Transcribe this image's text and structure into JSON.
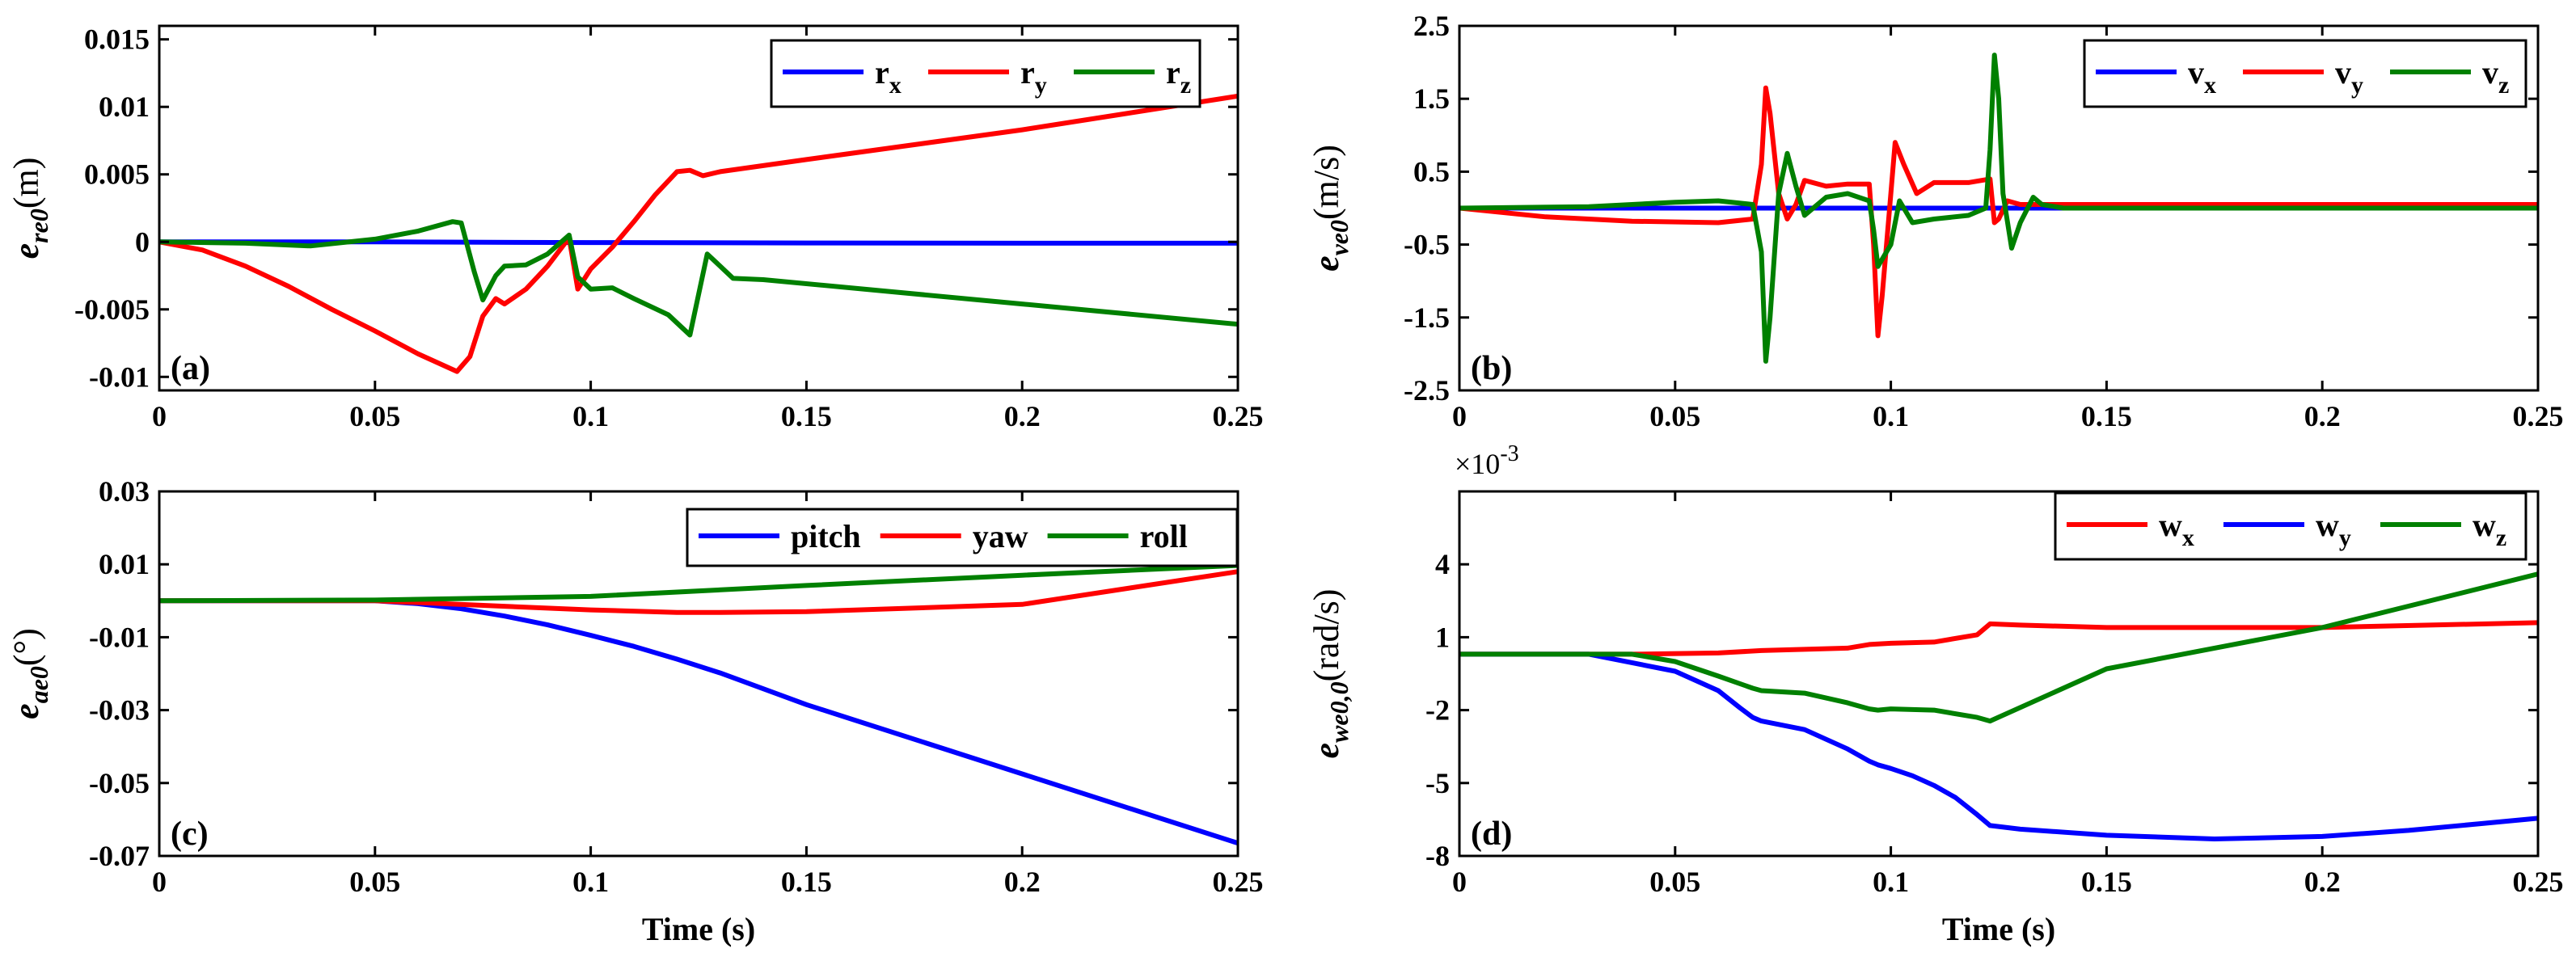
{
  "chart_data": [
    {
      "id": "a",
      "type": "line",
      "panel_label": "(a)",
      "ylabel": {
        "base": "e",
        "sub": "re0",
        "unit": "(m)"
      },
      "xlabel": "",
      "xlim": [
        0,
        0.25
      ],
      "ylim": [
        -0.011,
        0.016
      ],
      "xticks": [
        0,
        0.05,
        0.1,
        0.15,
        0.2,
        0.25
      ],
      "xtick_labels": [
        "0",
        "0.05",
        "0.1",
        "0.15",
        "0.2",
        "0.25"
      ],
      "yticks": [
        -0.01,
        -0.005,
        0,
        0.005,
        0.01,
        0.015
      ],
      "ytick_labels": [
        "-0.01",
        "-0.005",
        "0",
        "0.005",
        "0.01",
        "0.015"
      ],
      "legend": {
        "placement": "top-right"
      },
      "series": [
        {
          "name": "r",
          "sub": "x",
          "color": "#0000ff",
          "x": [
            0,
            0.05,
            0.1,
            0.15,
            0.2,
            0.25
          ],
          "y": [
            0,
            0,
            -5e-05,
            -8e-05,
            -0.0001,
            -0.0001
          ]
        },
        {
          "name": "r",
          "sub": "y",
          "color": "#ff0000",
          "x": [
            0,
            0.01,
            0.02,
            0.03,
            0.04,
            0.05,
            0.06,
            0.069,
            0.072,
            0.075,
            0.078,
            0.08,
            0.085,
            0.09,
            0.095,
            0.097,
            0.1,
            0.105,
            0.11,
            0.115,
            0.12,
            0.123,
            0.126,
            0.13,
            0.15,
            0.2,
            0.25
          ],
          "y": [
            0,
            -0.0006,
            -0.0018,
            -0.0033,
            -0.005,
            -0.0066,
            -0.0083,
            -0.0096,
            -0.0085,
            -0.0055,
            -0.0042,
            -0.0046,
            -0.0035,
            -0.0018,
            0.0003,
            -0.0035,
            -0.002,
            -0.0004,
            0.0015,
            0.0035,
            0.0052,
            0.0053,
            0.0049,
            0.0052,
            0.0061,
            0.0083,
            0.0108
          ]
        },
        {
          "name": "r",
          "sub": "z",
          "color": "#008000",
          "x": [
            0,
            0.02,
            0.035,
            0.05,
            0.06,
            0.068,
            0.07,
            0.073,
            0.075,
            0.078,
            0.08,
            0.085,
            0.09,
            0.095,
            0.097,
            0.1,
            0.105,
            0.11,
            0.118,
            0.123,
            0.127,
            0.13,
            0.133,
            0.14,
            0.2,
            0.25
          ],
          "y": [
            0,
            -0.0001,
            -0.0003,
            0.0002,
            0.0008,
            0.0015,
            0.0014,
            -0.0022,
            -0.0043,
            -0.0025,
            -0.0018,
            -0.0017,
            -0.0009,
            0.0005,
            -0.0026,
            -0.0035,
            -0.0034,
            -0.0042,
            -0.0054,
            -0.0069,
            -0.0009,
            -0.0018,
            -0.0027,
            -0.0028,
            -0.0046,
            -0.0061
          ]
        }
      ]
    },
    {
      "id": "b",
      "type": "line",
      "panel_label": "(b)",
      "ylabel": {
        "base": "e",
        "sub": "ve0",
        "unit": "(m/s)"
      },
      "xlabel": "",
      "xlim": [
        0,
        0.25
      ],
      "ylim": [
        -2.5,
        2.5
      ],
      "xticks": [
        0,
        0.05,
        0.1,
        0.15,
        0.2,
        0.25
      ],
      "xtick_labels": [
        "0",
        "0.05",
        "0.1",
        "0.15",
        "0.2",
        "0.25"
      ],
      "yticks": [
        -2.5,
        -1.5,
        -0.5,
        0.5,
        1.5,
        2.5
      ],
      "ytick_labels": [
        "-2.5",
        "-1.5",
        "-0.5",
        "0.5",
        "1.5",
        "2.5"
      ],
      "legend": {
        "placement": "top-right"
      },
      "series": [
        {
          "name": "v",
          "sub": "x",
          "color": "#0000ff",
          "x": [
            0,
            0.05,
            0.1,
            0.15,
            0.2,
            0.25
          ],
          "y": [
            0,
            0,
            0,
            0,
            0,
            0
          ]
        },
        {
          "name": "v",
          "sub": "y",
          "color": "#ff0000",
          "x": [
            0,
            0.02,
            0.04,
            0.06,
            0.068,
            0.07,
            0.071,
            0.072,
            0.074,
            0.076,
            0.078,
            0.08,
            0.085,
            0.09,
            0.095,
            0.096,
            0.097,
            0.098,
            0.1,
            0.101,
            0.103,
            0.106,
            0.11,
            0.118,
            0.123,
            0.124,
            0.125,
            0.127,
            0.13,
            0.14,
            0.2,
            0.25
          ],
          "y": [
            0,
            -0.12,
            -0.18,
            -0.2,
            -0.15,
            0.6,
            1.65,
            1.3,
            0.2,
            -0.15,
            0.05,
            0.38,
            0.3,
            0.33,
            0.33,
            -0.5,
            -1.75,
            -1.2,
            0.2,
            0.9,
            0.6,
            0.2,
            0.35,
            0.35,
            0.4,
            -0.2,
            -0.15,
            0.1,
            0.05,
            0.05,
            0.05,
            0.05
          ]
        },
        {
          "name": "v",
          "sub": "z",
          "color": "#008000",
          "x": [
            0,
            0.03,
            0.05,
            0.06,
            0.068,
            0.07,
            0.071,
            0.072,
            0.074,
            0.076,
            0.078,
            0.08,
            0.085,
            0.09,
            0.095,
            0.096,
            0.097,
            0.098,
            0.1,
            0.102,
            0.105,
            0.11,
            0.118,
            0.122,
            0.123,
            0.124,
            0.125,
            0.126,
            0.128,
            0.13,
            0.133,
            0.135,
            0.14,
            0.2,
            0.25
          ],
          "y": [
            0,
            0.02,
            0.08,
            0.1,
            0.05,
            -0.6,
            -2.1,
            -1.5,
            0.2,
            0.75,
            0.3,
            -0.1,
            0.15,
            0.2,
            0.1,
            -0.3,
            -0.8,
            -0.7,
            -0.5,
            0.1,
            -0.2,
            -0.15,
            -0.1,
            0.0,
            0.8,
            2.1,
            1.5,
            0.2,
            -0.55,
            -0.2,
            0.15,
            0.05,
            0.0,
            0.0,
            0.0
          ]
        }
      ]
    },
    {
      "id": "c",
      "type": "line",
      "panel_label": "(c)",
      "ylabel": {
        "base": "e",
        "sub": "ae0",
        "unit": "(°)"
      },
      "xlabel": "Time (s)",
      "xlim": [
        0,
        0.25
      ],
      "ylim": [
        -0.07,
        0.03
      ],
      "xticks": [
        0,
        0.05,
        0.1,
        0.15,
        0.2,
        0.25
      ],
      "xtick_labels": [
        "0",
        "0.05",
        "0.1",
        "0.15",
        "0.2",
        "0.25"
      ],
      "yticks": [
        -0.07,
        -0.05,
        -0.03,
        -0.01,
        0.01,
        0.03
      ],
      "ytick_labels": [
        "-0.07",
        "-0.05",
        "-0.03",
        "-0.01",
        "0.01",
        "0.03"
      ],
      "legend": {
        "placement": "top-right"
      },
      "series": [
        {
          "name": "pitch",
          "sub": "",
          "color": "#0000ff",
          "x": [
            0,
            0.05,
            0.06,
            0.07,
            0.08,
            0.09,
            0.1,
            0.11,
            0.12,
            0.13,
            0.15,
            0.2,
            0.25
          ],
          "y": [
            0,
            0,
            -0.0008,
            -0.0022,
            -0.0042,
            -0.0066,
            -0.0095,
            -0.0125,
            -0.016,
            -0.0198,
            -0.0285,
            -0.0475,
            -0.0665
          ]
        },
        {
          "name": "yaw",
          "sub": "",
          "color": "#ff0000",
          "x": [
            0,
            0.05,
            0.08,
            0.1,
            0.12,
            0.13,
            0.15,
            0.2,
            0.25
          ],
          "y": [
            0,
            0,
            -0.0015,
            -0.0025,
            -0.0032,
            -0.0032,
            -0.003,
            -0.001,
            0.008
          ]
        },
        {
          "name": "roll",
          "sub": "",
          "color": "#008000",
          "x": [
            0,
            0.05,
            0.1,
            0.15,
            0.2,
            0.25
          ],
          "y": [
            0,
            0.0002,
            0.0012,
            0.0042,
            0.007,
            0.0097
          ]
        }
      ]
    },
    {
      "id": "d",
      "type": "line",
      "panel_label": "(d)",
      "ylabel": {
        "base": "e",
        "sub": "we0,0",
        "unit": "(rad/s)"
      },
      "xlabel": "Time (s)",
      "multiplier": "×10",
      "multiplier_exp": "-3",
      "xlim": [
        0,
        0.25
      ],
      "ylim": [
        -8,
        7
      ],
      "xticks": [
        0,
        0.05,
        0.1,
        0.15,
        0.2,
        0.25
      ],
      "xtick_labels": [
        "0",
        "0.05",
        "0.1",
        "0.15",
        "0.2",
        "0.25"
      ],
      "yticks": [
        -8,
        -5,
        -2,
        1,
        4
      ],
      "ytick_labels": [
        "-8",
        "-5",
        "-2",
        "1",
        "4"
      ],
      "legend": {
        "placement": "top-right"
      },
      "series": [
        {
          "name": "w",
          "sub": "x",
          "color": "#ff0000",
          "x": [
            0,
            0.04,
            0.06,
            0.07,
            0.09,
            0.095,
            0.1,
            0.11,
            0.12,
            0.123,
            0.13,
            0.15,
            0.2,
            0.25
          ],
          "y": [
            0.3,
            0.3,
            0.35,
            0.45,
            0.55,
            0.7,
            0.75,
            0.8,
            1.1,
            1.55,
            1.5,
            1.4,
            1.4,
            1.6
          ]
        },
        {
          "name": "w",
          "sub": "y",
          "color": "#0000ff",
          "x": [
            0,
            0.03,
            0.05,
            0.06,
            0.065,
            0.068,
            0.07,
            0.08,
            0.09,
            0.095,
            0.097,
            0.1,
            0.105,
            0.11,
            0.115,
            0.12,
            0.123,
            0.13,
            0.15,
            0.175,
            0.2,
            0.22,
            0.25
          ],
          "y": [
            0.3,
            0.3,
            -0.4,
            -1.2,
            -1.9,
            -2.3,
            -2.45,
            -2.8,
            -3.6,
            -4.1,
            -4.25,
            -4.4,
            -4.7,
            -5.1,
            -5.6,
            -6.3,
            -6.75,
            -6.9,
            -7.15,
            -7.3,
            -7.2,
            -6.95,
            -6.45
          ]
        },
        {
          "name": "w",
          "sub": "z",
          "color": "#008000",
          "x": [
            0,
            0.04,
            0.05,
            0.06,
            0.068,
            0.07,
            0.08,
            0.09,
            0.095,
            0.097,
            0.1,
            0.11,
            0.12,
            0.123,
            0.15,
            0.2,
            0.25
          ],
          "y": [
            0.3,
            0.3,
            0.0,
            -0.6,
            -1.1,
            -1.2,
            -1.3,
            -1.7,
            -1.95,
            -2.0,
            -1.95,
            -2.0,
            -2.3,
            -2.45,
            -0.3,
            1.4,
            3.6
          ]
        }
      ]
    }
  ]
}
